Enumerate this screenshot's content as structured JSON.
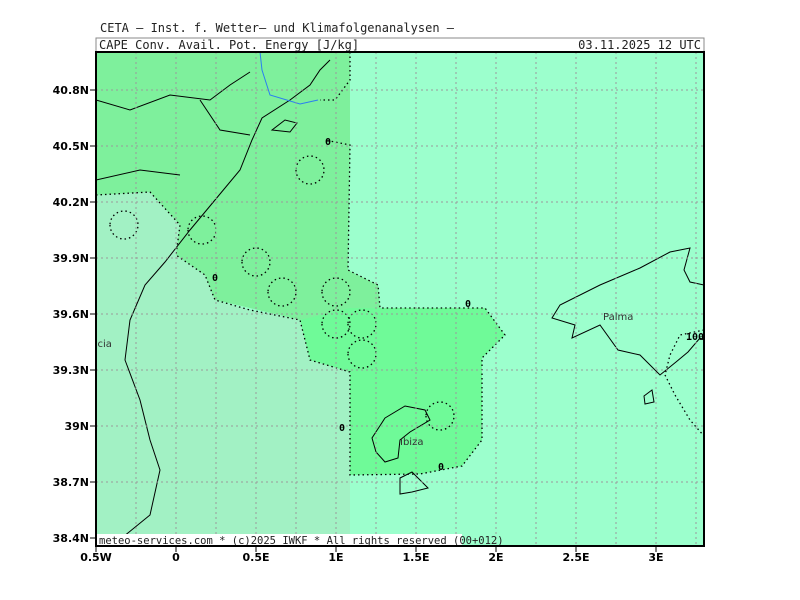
{
  "header": {
    "source": "CETA – Inst. f. Wetter– und Klimafolgenanalysen –",
    "title": "CAPE_Conv._Avail._Pot._Energy_[J/kg]",
    "timestamp": "03.11.2025 12 UTC"
  },
  "y_ticks": [
    "40.8N",
    "40.5N",
    "40.2N",
    "39.9N",
    "39.6N",
    "39.3N",
    "39N",
    "38.7N",
    "38.4N"
  ],
  "x_ticks": [
    "0.5W",
    "0",
    "0.5E",
    "1E",
    "1.5E",
    "2E",
    "2.5E",
    "3E"
  ],
  "contour_labels": [
    "0",
    "0",
    "0",
    "0",
    "0",
    "100"
  ],
  "places": [
    "Palma",
    "Valencia",
    "Ibiza"
  ],
  "footer": {
    "copyright": "meteo-services.com * (c)2025 IWKF * All rights reserved (00+012)"
  }
}
